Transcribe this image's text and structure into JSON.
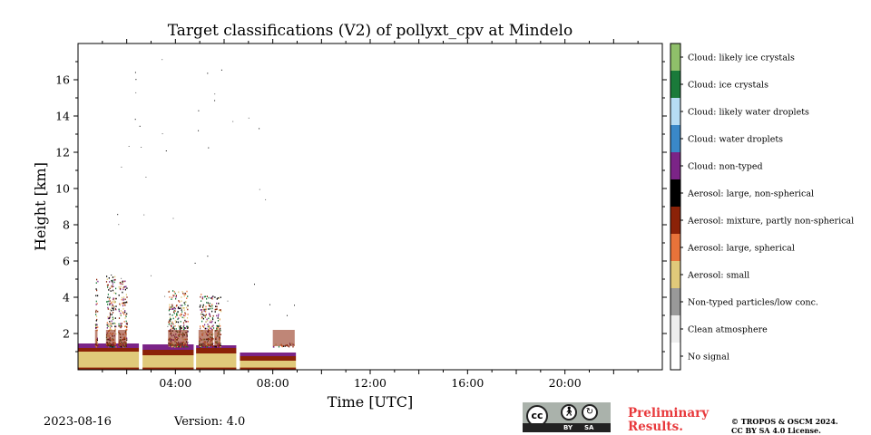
{
  "chart_data": {
    "type": "heatmap",
    "title": "Target classifications (V2) of pollyxt_cpv at Mindelo",
    "xlabel": "Time [UTC]",
    "ylabel": "Height [km]",
    "xlim_hours": [
      0,
      24
    ],
    "ylim_km": [
      0,
      18
    ],
    "x_ticks": [
      {
        "hour": 4,
        "label": "04:00"
      },
      {
        "hour": 8,
        "label": "08:00"
      },
      {
        "hour": 12,
        "label": "12:00"
      },
      {
        "hour": 16,
        "label": "16:00"
      },
      {
        "hour": 20,
        "label": "20:00"
      }
    ],
    "y_ticks": [
      2,
      4,
      6,
      8,
      10,
      12,
      14,
      16
    ],
    "classes": [
      {
        "id": 0,
        "label": "No signal",
        "color": "#ffffff"
      },
      {
        "id": 1,
        "label": "Clean atmosphere",
        "color": "#eeeeee"
      },
      {
        "id": 2,
        "label": "Non-typed particles/low conc.",
        "color": "#999999"
      },
      {
        "id": 3,
        "label": "Aerosol: small",
        "color": "#e0c97a"
      },
      {
        "id": 4,
        "label": "Aerosol: large, spherical",
        "color": "#e8733a"
      },
      {
        "id": 5,
        "label": "Aerosol: mixture, partly non-spherical",
        "color": "#8b2208"
      },
      {
        "id": 6,
        "label": "Aerosol: large, non-spherical",
        "color": "#000000"
      },
      {
        "id": 7,
        "label": "Cloud: non-typed",
        "color": "#7b2487"
      },
      {
        "id": 8,
        "label": "Cloud: water droplets",
        "color": "#3a88c8"
      },
      {
        "id": 9,
        "label": "Cloud: likely water droplets",
        "color": "#b6dcf4"
      },
      {
        "id": 10,
        "label": "Cloud: ice crystals",
        "color": "#1a7a3a"
      },
      {
        "id": 11,
        "label": "Cloud: likely ice crystals",
        "color": "#8fbf6a"
      }
    ],
    "segments": [
      {
        "start_hour": 0.0,
        "end_hour": 2.5,
        "aerosol_top_km": 1.0,
        "mixture_top_km": 1.2,
        "cloud_top_km": 1.45
      },
      {
        "start_hour": 2.65,
        "end_hour": 4.75,
        "aerosol_top_km": 0.8,
        "mixture_top_km": 1.1,
        "cloud_top_km": 1.4
      },
      {
        "start_hour": 4.85,
        "end_hour": 6.5,
        "aerosol_top_km": 0.9,
        "mixture_top_km": 1.2,
        "cloud_top_km": 1.35
      },
      {
        "start_hour": 6.65,
        "end_hour": 8.95,
        "aerosol_top_km": 0.5,
        "mixture_top_km": 0.75,
        "cloud_top_km": 0.95
      }
    ],
    "speckle_columns": [
      {
        "start_hour": 0.7,
        "end_hour": 0.8,
        "top_km": 5.1
      },
      {
        "start_hour": 1.15,
        "end_hour": 1.55,
        "top_km": 5.2
      },
      {
        "start_hour": 1.65,
        "end_hour": 2.0,
        "top_km": 5.0
      },
      {
        "start_hour": 3.7,
        "end_hour": 4.5,
        "top_km": 4.4
      },
      {
        "start_hour": 4.95,
        "end_hour": 5.55,
        "top_km": 4.2
      },
      {
        "start_hour": 5.6,
        "end_hour": 5.85,
        "top_km": 4.1
      },
      {
        "start_hour": 8.0,
        "end_hour": 8.9,
        "top_km": 1.5
      }
    ]
  },
  "footer": {
    "date": "2023-08-16",
    "version": "Version: 4.0",
    "preliminary_line1": "Preliminary",
    "preliminary_line2": "Results.",
    "copyright_line1": "© TROPOS & OSCM 2024.",
    "copyright_line2": "CC BY SA 4.0 License.",
    "license_cc": "cc",
    "license_by": "BY",
    "license_sa": "SA"
  }
}
